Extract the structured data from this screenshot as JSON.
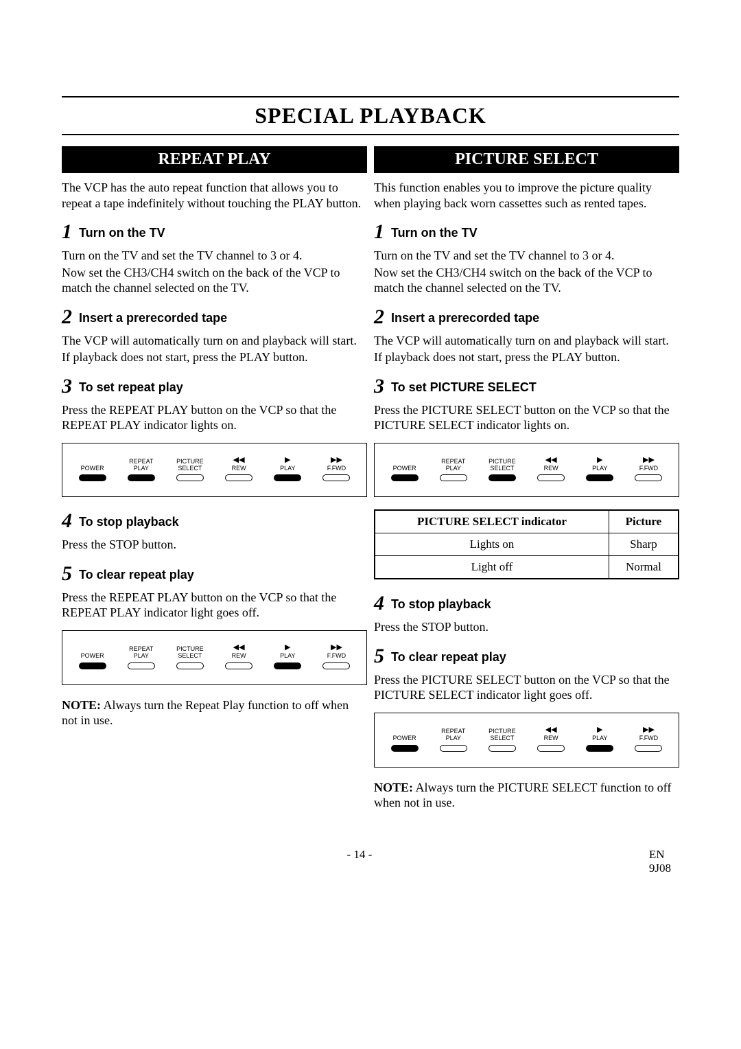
{
  "title": "SPECIAL PLAYBACK",
  "left": {
    "header": "REPEAT PLAY",
    "intro": "The VCP has the auto repeat function that allows you to repeat a tape indefinitely without touching the PLAY button.",
    "s1_title": "Turn on the TV",
    "s1_body_a": "Turn on the TV and set the TV channel to 3 or 4.",
    "s1_body_b": "Now set the CH3/CH4 switch on the back of the VCP to match the channel selected on the TV.",
    "s2_title": "Insert a prerecorded tape",
    "s2_body_a": "The VCP will automatically turn on and playback will start.",
    "s2_body_b": "If playback does not start, press the PLAY button.",
    "s3_title": "To set repeat play",
    "s3_body": "Press the REPEAT PLAY button on the VCP so that the REPEAT PLAY indicator lights on.",
    "s4_title": "To stop playback",
    "s4_body": "Press the STOP button.",
    "s5_title": "To clear repeat play",
    "s5_body": "Press the REPEAT PLAY button on the VCP so that the REPEAT PLAY indicator light goes off.",
    "note": "NOTE: Always turn the Repeat Play function to off when not in use."
  },
  "right": {
    "header": "PICTURE SELECT",
    "intro": "This function enables you to improve the picture quality when playing back worn cassettes such as rented tapes.",
    "s1_title": "Turn on the TV",
    "s1_body_a": "Turn on the TV and set the TV channel to 3 or 4.",
    "s1_body_b": "Now set the CH3/CH4 switch on the back of the VCP to match the channel selected on the TV.",
    "s2_title": "Insert a prerecorded tape",
    "s2_body_a": "The VCP will automatically turn on and playback will start.",
    "s2_body_b": "If playback does not start, press the PLAY button.",
    "s3_title": "To set PICTURE SELECT",
    "s3_body": "Press the PICTURE SELECT button on the VCP so that the PICTURE SELECT indicator lights on.",
    "table": {
      "h1": "PICTURE SELECT indicator",
      "h2": "Picture",
      "r1c1": "Lights on",
      "r1c2": "Sharp",
      "r2c1": "Light off",
      "r2c2": "Normal"
    },
    "s4_title": "To stop playback",
    "s4_body": "Press the STOP button.",
    "s5_title": "To clear repeat play",
    "s5_body": "Press the PICTURE SELECT button on the VCP so that the PICTURE SELECT indicator light goes off.",
    "note": "NOTE: Always turn the PICTURE SELECT function to off when not in use."
  },
  "panel": {
    "items": [
      {
        "sym": "",
        "label": "POWER"
      },
      {
        "sym": "",
        "label": "REPEAT\nPLAY"
      },
      {
        "sym": "",
        "label": "PICTURE\nSELECT"
      },
      {
        "sym": "◀◀",
        "label": "REW"
      },
      {
        "sym": "▶",
        "label": "PLAY"
      },
      {
        "sym": "▶▶",
        "label": "F.FWD"
      }
    ],
    "states": {
      "repeat_on": [
        "on",
        "on",
        "off",
        "off",
        "on",
        "off"
      ],
      "repeat_off": [
        "on",
        "off",
        "off",
        "off",
        "on",
        "off"
      ],
      "picsel_on": [
        "on",
        "off",
        "on",
        "off",
        "on",
        "off"
      ],
      "picsel_off": [
        "on",
        "off",
        "off",
        "off",
        "on",
        "off"
      ]
    }
  },
  "footer": {
    "page": "- 14 -",
    "code1": "EN",
    "code2": "9J08"
  }
}
